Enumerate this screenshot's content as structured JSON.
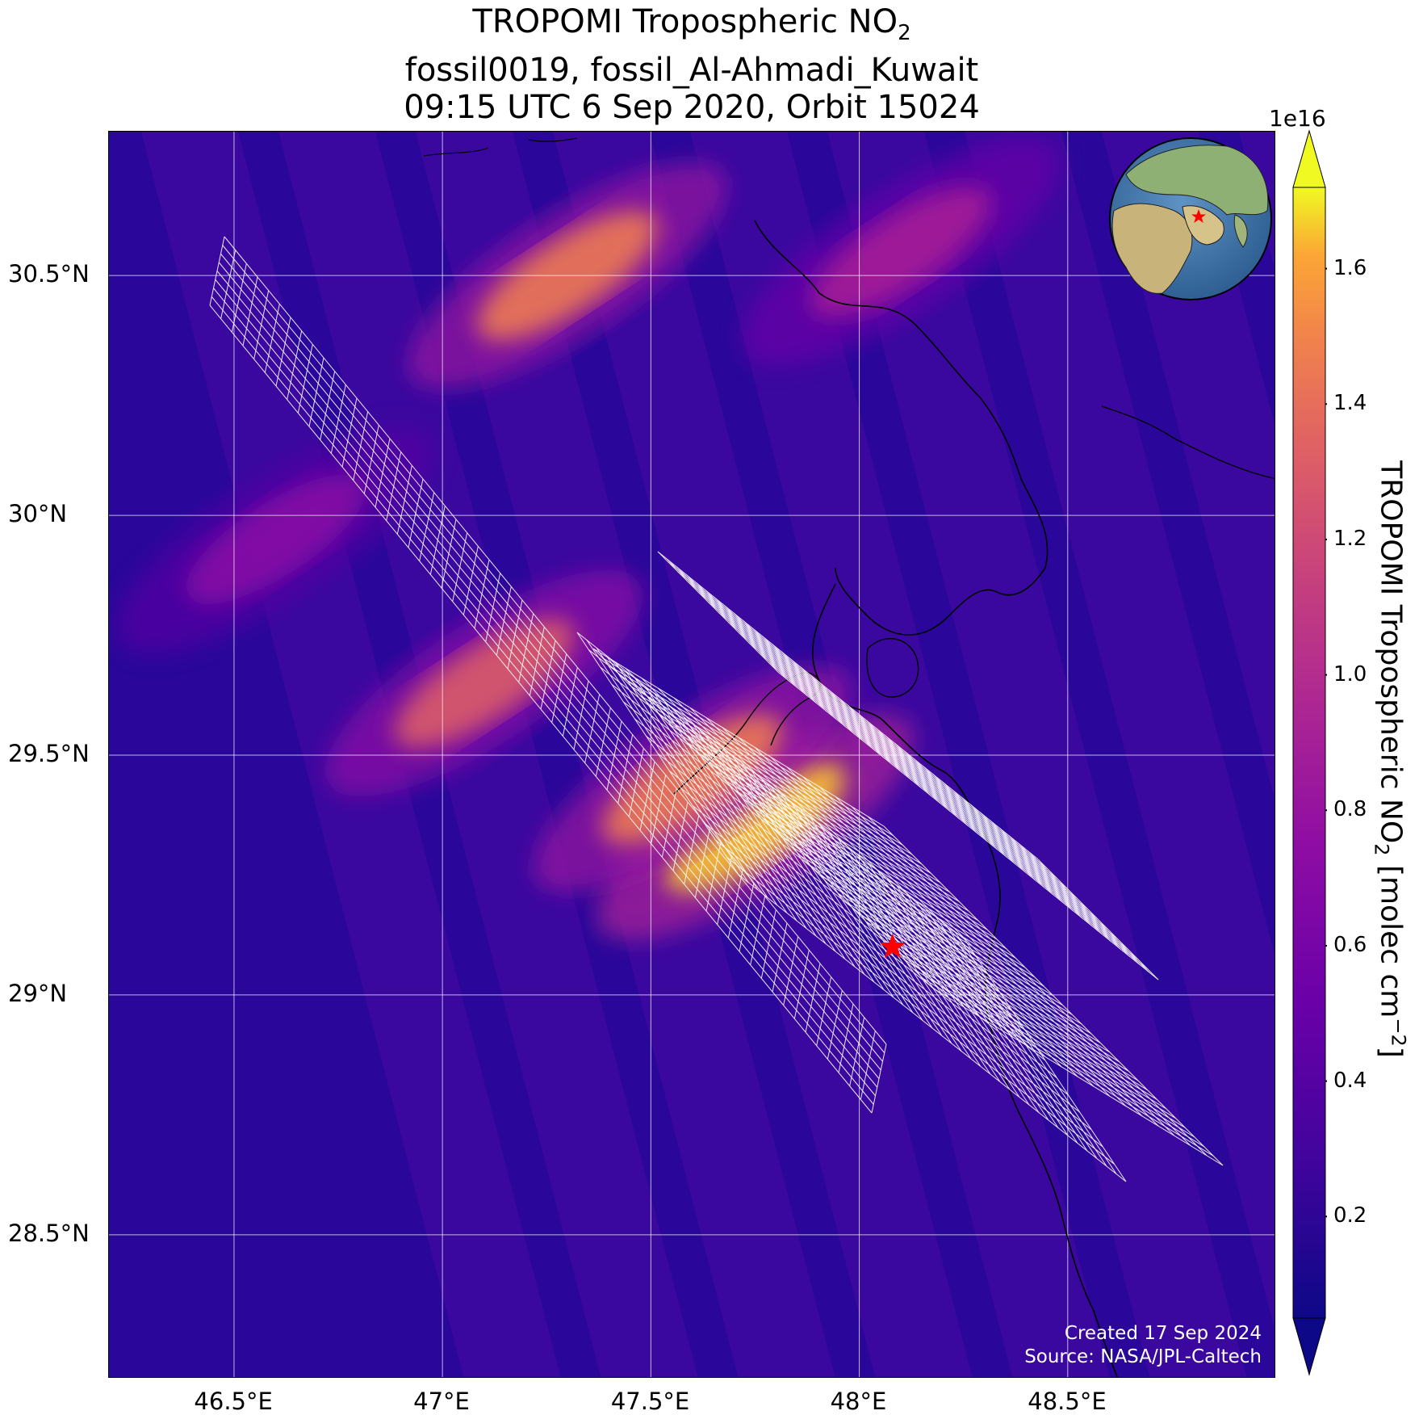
{
  "title": {
    "line1_prefix": "TROPOMI Tropospheric NO",
    "line1_sub": "2",
    "line2": "fossil0019, fossil_Al-Ahmadi_Kuwait",
    "line3": "09:15 UTC 6 Sep 2020, Orbit 15024"
  },
  "map": {
    "lon_range": [
      46.2,
      49.0
    ],
    "lat_range": [
      28.2,
      30.8
    ],
    "lon_ticks": [
      {
        "value": 46.5,
        "label": "46.5°E"
      },
      {
        "value": 47.0,
        "label": "47°E"
      },
      {
        "value": 47.5,
        "label": "47.5°E"
      },
      {
        "value": 48.0,
        "label": "48°E"
      },
      {
        "value": 48.5,
        "label": "48.5°E"
      }
    ],
    "lat_ticks": [
      {
        "value": 30.5,
        "label": "30.5°N"
      },
      {
        "value": 30.0,
        "label": "30°N"
      },
      {
        "value": 29.5,
        "label": "29.5°N"
      },
      {
        "value": 29.0,
        "label": "29°N"
      },
      {
        "value": 28.5,
        "label": "28.5°N"
      }
    ],
    "grid": true,
    "target_site": {
      "lon": 48.08,
      "lat": 29.1,
      "marker": "red-star"
    },
    "inset_globe": {
      "position": "top-right",
      "marker": "red-star"
    },
    "hotspots": [
      {
        "lon": 47.75,
        "lat": 29.35,
        "value": 1.65
      },
      {
        "lon": 47.6,
        "lat": 29.45,
        "value": 1.45
      },
      {
        "lon": 47.3,
        "lat": 30.5,
        "value": 1.45
      },
      {
        "lon": 47.1,
        "lat": 29.65,
        "value": 1.3
      },
      {
        "lon": 48.1,
        "lat": 30.55,
        "value": 0.9
      },
      {
        "lon": 46.6,
        "lat": 29.95,
        "value": 0.7
      }
    ]
  },
  "colorbar": {
    "label_prefix": "TROPOMI Tropospheric NO",
    "label_sub": "2",
    "label_mid": " [molec cm",
    "label_sup": "−2",
    "label_end": "]",
    "exponent": "1e16",
    "range": [
      0.05,
      1.72
    ],
    "ticks": [
      "0.2",
      "0.4",
      "0.6",
      "0.8",
      "1.0",
      "1.2",
      "1.4",
      "1.6"
    ],
    "tick_values": [
      0.2,
      0.4,
      0.6,
      0.8,
      1.0,
      1.2,
      1.4,
      1.6
    ],
    "colormap": "plasma",
    "extend": "both"
  },
  "credits": {
    "created": "Created 17 Sep 2024",
    "source": "Source: NASA/JPL-Caltech"
  },
  "colors": {
    "background_low": "#2a079a",
    "marker": "#ff0000",
    "grid": "#ffffff",
    "coastline": "#000000"
  }
}
